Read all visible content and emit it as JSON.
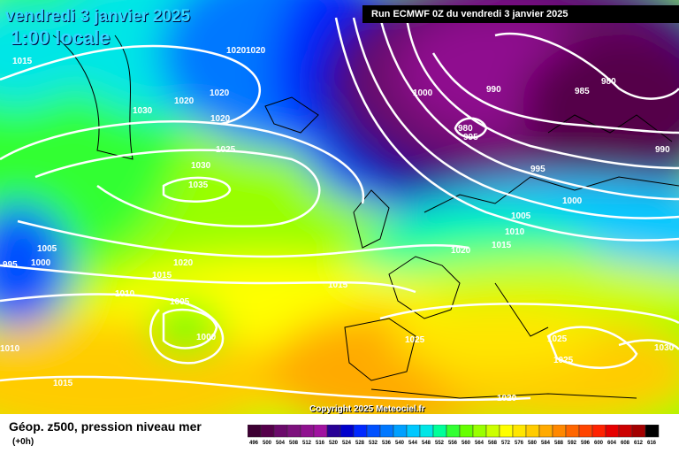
{
  "header": {
    "date": "vendredi 3 janvier 2025",
    "time": "1:00 locale",
    "run": "Run ECMWF 0Z du vendredi 3 janvier 2025"
  },
  "copyright": "Copyright 2025 Meteociel.fr",
  "footer": {
    "parameter": "Géop. z500, pression niveau mer",
    "lead_time": "(+0h)"
  },
  "legend": {
    "ticks": [
      "496",
      "500",
      "504",
      "508",
      "512",
      "516",
      "520",
      "524",
      "528",
      "532",
      "536",
      "540",
      "544",
      "548",
      "552",
      "556",
      "560",
      "564",
      "568",
      "572",
      "576",
      "580",
      "584",
      "588",
      "592",
      "596",
      "600",
      "604",
      "608",
      "612",
      "616"
    ],
    "colors": [
      "#3d0033",
      "#55004a",
      "#6b0a6b",
      "#7d117d",
      "#8f118f",
      "#a012a0",
      "#280095",
      "#0000cc",
      "#0028ff",
      "#0050ff",
      "#0078ff",
      "#00a0ff",
      "#00c8ff",
      "#00e6e6",
      "#00ff99",
      "#33ff33",
      "#66ff00",
      "#99ff00",
      "#ccff00",
      "#ffff00",
      "#ffe600",
      "#ffcc00",
      "#ffaa00",
      "#ff8800",
      "#ff6600",
      "#ff4400",
      "#ff2200",
      "#e60000",
      "#cc0000",
      "#a30000",
      "#000000"
    ]
  },
  "isobar_labels": [
    {
      "text": "1015"
    },
    {
      "text": "1020"
    },
    {
      "text": "1020"
    },
    {
      "text": "1020"
    },
    {
      "text": "1030"
    },
    {
      "text": "1020"
    },
    {
      "text": "1020"
    },
    {
      "text": "1025"
    },
    {
      "text": "1030"
    },
    {
      "text": "1035"
    },
    {
      "text": "1005"
    },
    {
      "text": "1000"
    },
    {
      "text": "995"
    },
    {
      "text": "1020"
    },
    {
      "text": "1015"
    },
    {
      "text": "1010"
    },
    {
      "text": "1005"
    },
    {
      "text": "1000"
    },
    {
      "text": "1010"
    },
    {
      "text": "1015"
    },
    {
      "text": "1015"
    },
    {
      "text": "1000"
    },
    {
      "text": "990"
    },
    {
      "text": "985"
    },
    {
      "text": "980"
    },
    {
      "text": "980"
    },
    {
      "text": "995"
    },
    {
      "text": "995"
    },
    {
      "text": "990"
    },
    {
      "text": "1000"
    },
    {
      "text": "1005"
    },
    {
      "text": "1010"
    },
    {
      "text": "1015"
    },
    {
      "text": "1020"
    },
    {
      "text": "1025"
    },
    {
      "text": "1025"
    },
    {
      "text": "1025"
    },
    {
      "text": "1030"
    },
    {
      "text": "1020"
    }
  ]
}
